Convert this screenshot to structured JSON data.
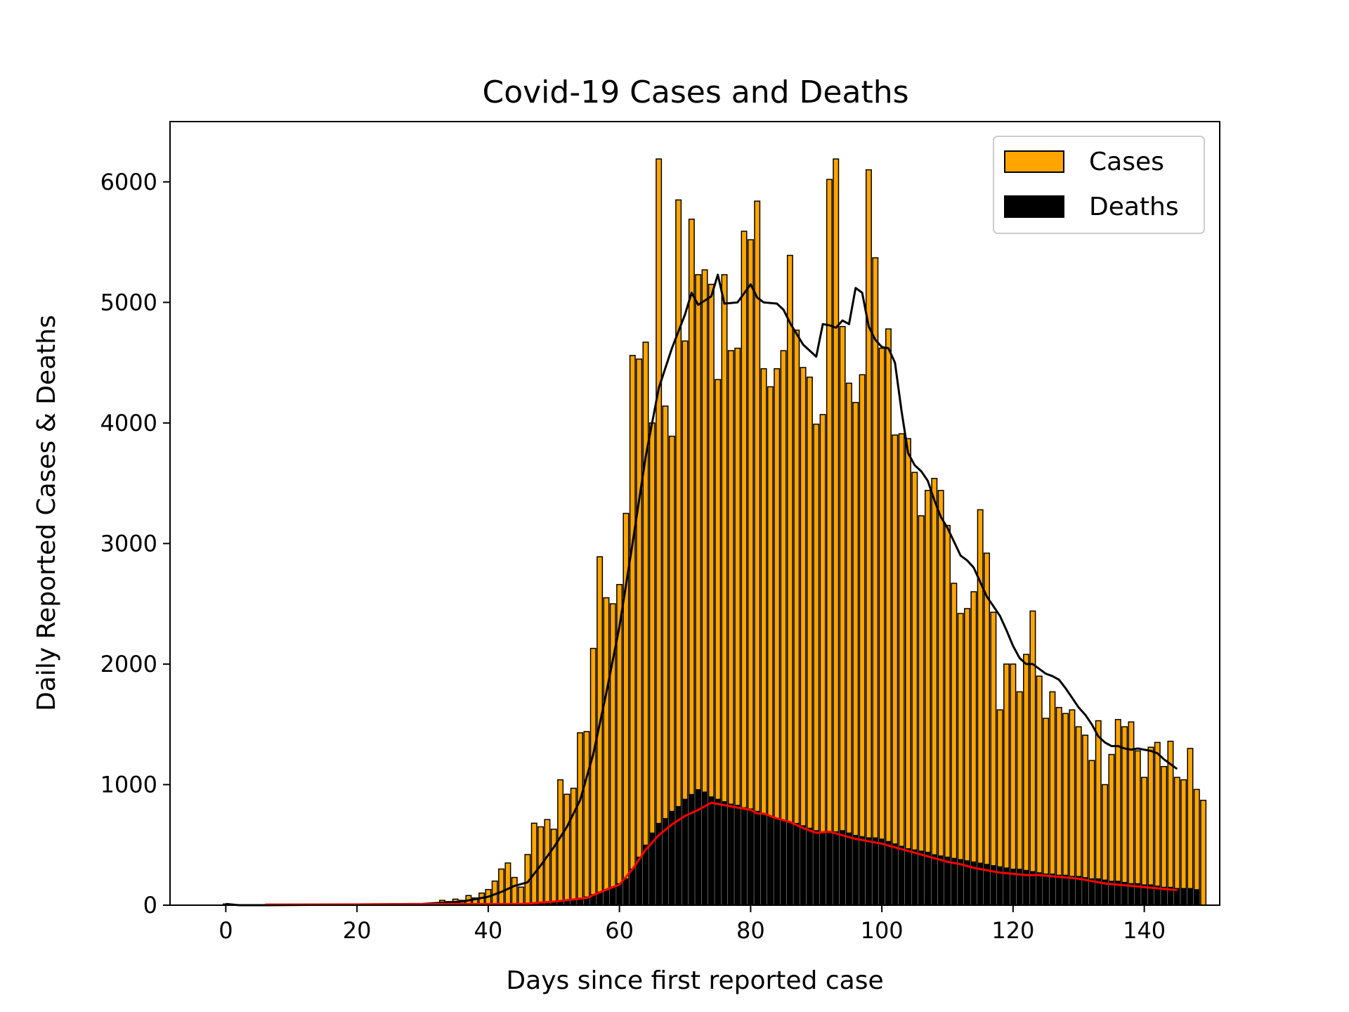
{
  "chart_data": {
    "type": "bar",
    "title": "Covid-19 Cases and Deaths",
    "xlabel": "Days since first reported case",
    "ylabel": "Daily Reported Cases & Deaths",
    "xlim": [
      -8.5,
      151.5
    ],
    "ylim": [
      0,
      6500
    ],
    "xticks": [
      0,
      20,
      40,
      60,
      80,
      100,
      120,
      140
    ],
    "yticks": [
      0,
      1000,
      2000,
      3000,
      4000,
      5000,
      6000
    ],
    "grid": false,
    "legend": {
      "position": "top-right",
      "entries": [
        "Cases",
        "Deaths"
      ]
    },
    "colors": {
      "cases": "#ffa500",
      "deaths": "#000000",
      "cases_avg": "#000000",
      "deaths_avg": "#ff0000"
    },
    "series": [
      {
        "name": "Cases",
        "kind": "bar",
        "x_start": 0,
        "values": [
          10,
          0,
          0,
          0,
          0,
          0,
          0,
          0,
          0,
          0,
          0,
          0,
          0,
          0,
          0,
          0,
          0,
          0,
          0,
          0,
          0,
          0,
          0,
          0,
          0,
          0,
          0,
          0,
          0,
          0,
          0,
          0,
          0,
          40,
          30,
          50,
          40,
          80,
          60,
          100,
          130,
          200,
          300,
          350,
          230,
          150,
          420,
          680,
          650,
          710,
          630,
          1040,
          920,
          970,
          1430,
          1440,
          2130,
          2890,
          2550,
          2500,
          2660,
          3250,
          4560,
          4530,
          4670,
          4000,
          6190,
          4140,
          3890,
          5850,
          4680,
          5690,
          5230,
          5270,
          5150,
          4360,
          5230,
          4600,
          4620,
          5590,
          5520,
          5840,
          4450,
          4300,
          4450,
          4600,
          5390,
          4770,
          4460,
          4380,
          3990,
          4070,
          6020,
          6190,
          4800,
          4330,
          4170,
          4400,
          6100,
          5370,
          4620,
          4780,
          3900,
          3910,
          3870,
          3590,
          3230,
          3440,
          3540,
          3440,
          3150,
          2670,
          2420,
          2460,
          2600,
          3280,
          2920,
          2430,
          1620,
          2000,
          2000,
          1770,
          2080,
          2440,
          1900,
          1550,
          1770,
          1640,
          1590,
          1620,
          1480,
          1410,
          1200,
          1530,
          1000,
          1250,
          1540,
          1480,
          1520,
          1280,
          1060,
          1310,
          1350,
          1150,
          1360,
          1060,
          1040,
          1300,
          960,
          870
        ]
      },
      {
        "name": "Deaths",
        "kind": "bar",
        "x_start": 0,
        "values": [
          0,
          0,
          0,
          0,
          0,
          0,
          0,
          0,
          0,
          0,
          0,
          0,
          0,
          0,
          0,
          0,
          0,
          0,
          0,
          0,
          0,
          0,
          0,
          0,
          0,
          0,
          0,
          0,
          0,
          0,
          0,
          0,
          0,
          0,
          0,
          0,
          0,
          0,
          0,
          0,
          0,
          0,
          0,
          5,
          5,
          5,
          10,
          10,
          15,
          20,
          25,
          30,
          40,
          50,
          60,
          70,
          90,
          110,
          120,
          150,
          180,
          220,
          300,
          400,
          500,
          600,
          680,
          720,
          780,
          820,
          880,
          920,
          960,
          940,
          900,
          880,
          860,
          840,
          830,
          810,
          800,
          780,
          760,
          740,
          720,
          700,
          690,
          680,
          660,
          640,
          620,
          610,
          600,
          610,
          620,
          600,
          580,
          570,
          560,
          560,
          550,
          530,
          510,
          490,
          470,
          460,
          450,
          440,
          420,
          410,
          400,
          390,
          380,
          370,
          360,
          350,
          340,
          330,
          320,
          310,
          300,
          300,
          290,
          280,
          270,
          260,
          260,
          250,
          250,
          240,
          240,
          230,
          220,
          220,
          210,
          200,
          200,
          190,
          180,
          180,
          170,
          170,
          160,
          150,
          150,
          140,
          140,
          140,
          130
        ]
      },
      {
        "name": "",
        "kind": "line",
        "role": "cases moving average",
        "points": [
          [
            0,
            10
          ],
          [
            2,
            0
          ],
          [
            6,
            0
          ],
          [
            30,
            10
          ],
          [
            36,
            30
          ],
          [
            40,
            70
          ],
          [
            42,
            110
          ],
          [
            44,
            160
          ],
          [
            46,
            190
          ],
          [
            48,
            330
          ],
          [
            50,
            480
          ],
          [
            52,
            650
          ],
          [
            54,
            870
          ],
          [
            56,
            1250
          ],
          [
            58,
            1760
          ],
          [
            60,
            2310
          ],
          [
            62,
            3000
          ],
          [
            64,
            3720
          ],
          [
            66,
            4290
          ],
          [
            68,
            4620
          ],
          [
            69,
            4760
          ],
          [
            70,
            4900
          ],
          [
            71,
            5080
          ],
          [
            72,
            4980
          ],
          [
            74,
            5050
          ],
          [
            75,
            5230
          ],
          [
            76,
            4990
          ],
          [
            78,
            5000
          ],
          [
            80,
            5150
          ],
          [
            81,
            5040
          ],
          [
            82,
            5000
          ],
          [
            84,
            4990
          ],
          [
            85,
            4940
          ],
          [
            86,
            4830
          ],
          [
            88,
            4650
          ],
          [
            90,
            4550
          ],
          [
            91,
            4820
          ],
          [
            92,
            4810
          ],
          [
            93,
            4790
          ],
          [
            94,
            4850
          ],
          [
            95,
            4820
          ],
          [
            96,
            5120
          ],
          [
            97,
            5080
          ],
          [
            98,
            4800
          ],
          [
            99,
            4690
          ],
          [
            100,
            4630
          ],
          [
            101,
            4620
          ],
          [
            102,
            4500
          ],
          [
            103,
            4100
          ],
          [
            104,
            3750
          ],
          [
            105,
            3650
          ],
          [
            106,
            3600
          ],
          [
            107,
            3520
          ],
          [
            108,
            3360
          ],
          [
            109,
            3220
          ],
          [
            110,
            3130
          ],
          [
            112,
            2900
          ],
          [
            113,
            2860
          ],
          [
            114,
            2800
          ],
          [
            115,
            2680
          ],
          [
            116,
            2560
          ],
          [
            117,
            2480
          ],
          [
            118,
            2400
          ],
          [
            119,
            2280
          ],
          [
            120,
            2150
          ],
          [
            121,
            2050
          ],
          [
            122,
            2000
          ],
          [
            123,
            2000
          ],
          [
            124,
            1960
          ],
          [
            125,
            1920
          ],
          [
            126,
            1900
          ],
          [
            127,
            1870
          ],
          [
            128,
            1800
          ],
          [
            129,
            1720
          ],
          [
            130,
            1640
          ],
          [
            131,
            1580
          ],
          [
            132,
            1500
          ],
          [
            133,
            1400
          ],
          [
            134,
            1350
          ],
          [
            135,
            1320
          ],
          [
            136,
            1320
          ],
          [
            137,
            1300
          ],
          [
            138,
            1290
          ],
          [
            139,
            1300
          ],
          [
            140,
            1290
          ],
          [
            141,
            1280
          ],
          [
            142,
            1260
          ],
          [
            143,
            1210
          ],
          [
            144,
            1170
          ],
          [
            145,
            1130
          ]
        ]
      },
      {
        "name": "",
        "kind": "line",
        "role": "deaths moving average",
        "points": [
          [
            6,
            5
          ],
          [
            45,
            10
          ],
          [
            50,
            30
          ],
          [
            55,
            60
          ],
          [
            58,
            130
          ],
          [
            60,
            170
          ],
          [
            62,
            300
          ],
          [
            64,
            460
          ],
          [
            66,
            580
          ],
          [
            68,
            670
          ],
          [
            70,
            740
          ],
          [
            72,
            790
          ],
          [
            73,
            820
          ],
          [
            74,
            850
          ],
          [
            75,
            840
          ],
          [
            76,
            830
          ],
          [
            78,
            810
          ],
          [
            80,
            790
          ],
          [
            81,
            760
          ],
          [
            82,
            760
          ],
          [
            84,
            720
          ],
          [
            86,
            690
          ],
          [
            88,
            640
          ],
          [
            90,
            600
          ],
          [
            92,
            610
          ],
          [
            94,
            580
          ],
          [
            96,
            550
          ],
          [
            98,
            530
          ],
          [
            100,
            510
          ],
          [
            102,
            480
          ],
          [
            104,
            450
          ],
          [
            106,
            420
          ],
          [
            108,
            390
          ],
          [
            110,
            360
          ],
          [
            112,
            340
          ],
          [
            114,
            310
          ],
          [
            116,
            290
          ],
          [
            118,
            270
          ],
          [
            120,
            260
          ],
          [
            122,
            250
          ],
          [
            124,
            250
          ],
          [
            126,
            240
          ],
          [
            128,
            230
          ],
          [
            130,
            220
          ],
          [
            132,
            200
          ],
          [
            134,
            180
          ],
          [
            136,
            170
          ],
          [
            138,
            160
          ],
          [
            140,
            150
          ],
          [
            142,
            140
          ],
          [
            144,
            130
          ],
          [
            145,
            125
          ]
        ]
      }
    ]
  }
}
